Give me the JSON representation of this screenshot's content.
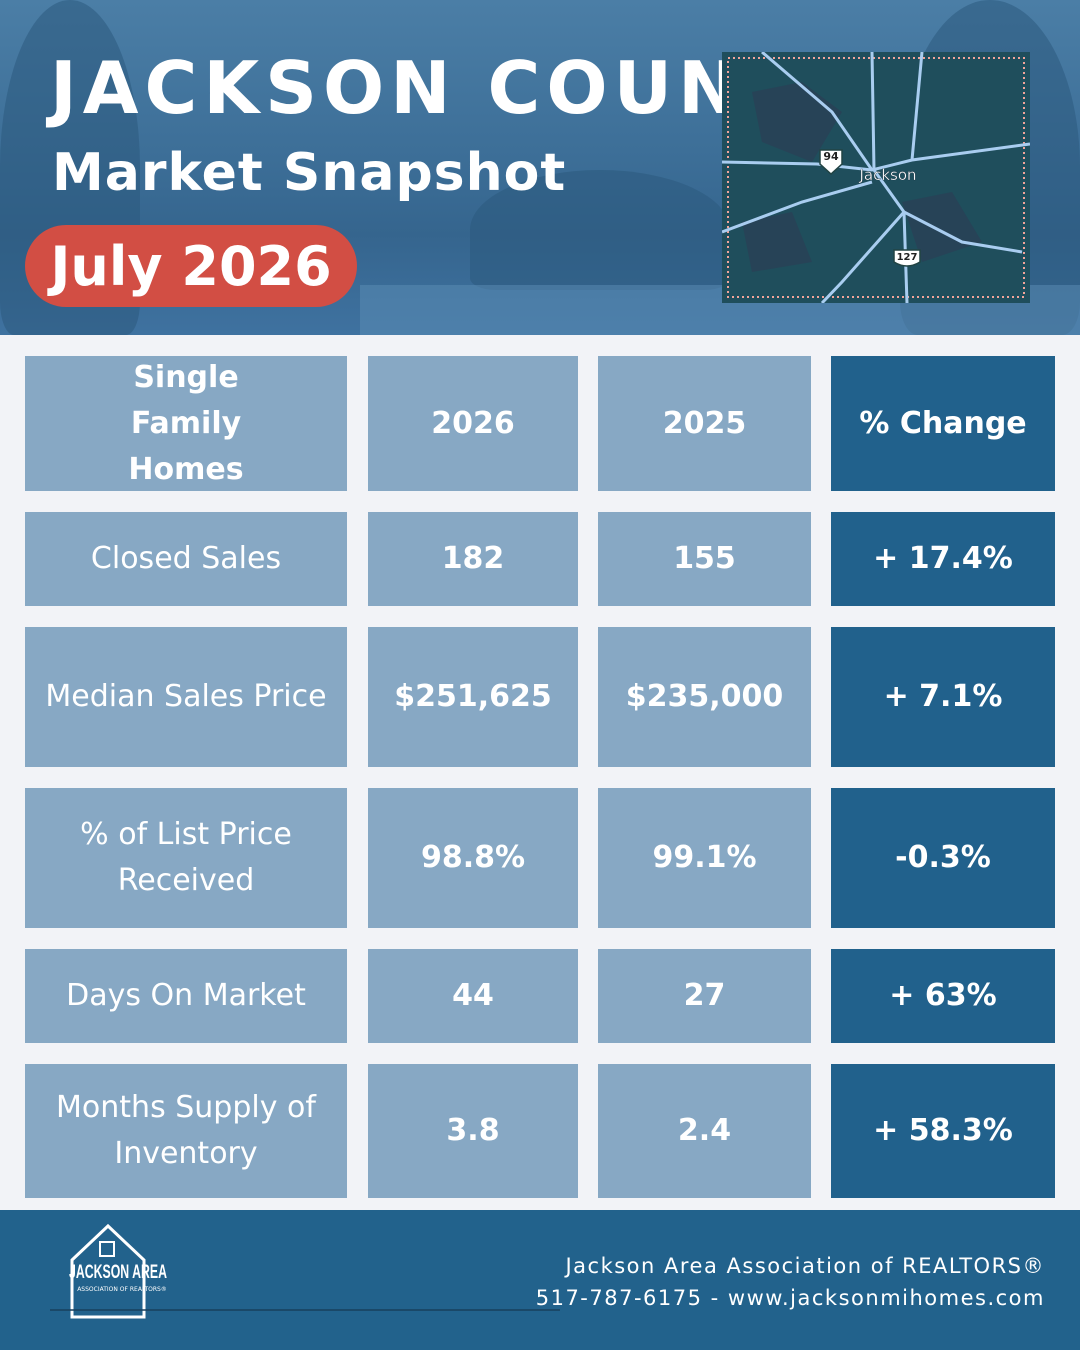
{
  "header": {
    "title": "JACKSON COUNTY",
    "subtitle": "Market Snapshot",
    "date": "July 2026"
  },
  "map": {
    "city": "Jackson",
    "interstate": "94",
    "highway": "127"
  },
  "table": {
    "header": [
      "Single Family Homes",
      "2026",
      "2025",
      "% Change"
    ],
    "rows": [
      [
        "Closed Sales",
        "182",
        "155",
        "+ 17.4%"
      ],
      [
        "Median Sales Price",
        "$251,625",
        "$235,000",
        "+ 7.1%"
      ],
      [
        "% of List Price Received",
        "98.8%",
        "99.1%",
        "-0.3%"
      ],
      [
        "Days On Market",
        "44",
        "27",
        "+ 63%"
      ],
      [
        "Months Supply of Inventory",
        "3.8",
        "2.4",
        "+ 58.3%"
      ]
    ]
  },
  "footer": {
    "logo_name": "JACKSON AREA",
    "logo_sub": "ASSOCIATION OF REALTORS®",
    "organization": "Jackson Area Association of REALTORS®",
    "contact": "517-787-6175 - www.jacksonmihomes.com"
  }
}
